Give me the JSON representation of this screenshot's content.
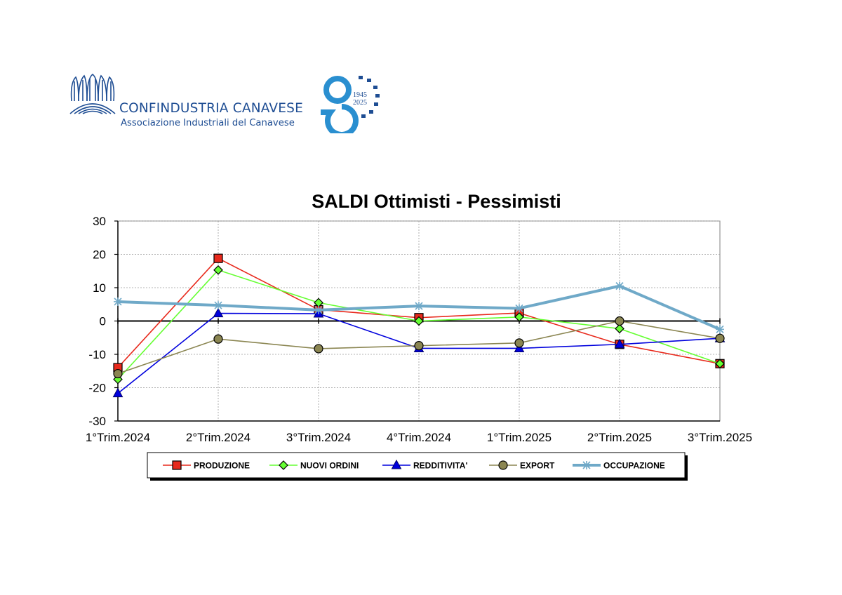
{
  "header": {
    "org_name": "CONFINDUSTRIA CANAVESE",
    "org_subtitle": "Associazione Industriali del Canavese",
    "anniversary_years": "1945 2025",
    "anniversary_number": "80",
    "brand_color": "#1e4d93",
    "anniversary_color": "#2a8fd0"
  },
  "chart_data": {
    "type": "line",
    "title": "SALDI Ottimisti - Pessimisti",
    "xlabel": "",
    "ylabel": "",
    "categories": [
      "1°Trim.2024",
      "2°Trim.2024",
      "3°Trim.2024",
      "4°Trim.2024",
      "1°Trim.2025",
      "2°Trim.2025",
      "3°Trim.2025"
    ],
    "ylim": [
      -30,
      30
    ],
    "yticks": [
      30,
      20,
      10,
      0,
      -10,
      -20,
      -30
    ],
    "grid": true,
    "legend_position": "bottom",
    "series": [
      {
        "name": "PRODUZIONE",
        "values": [
          -14,
          18.8,
          3.4,
          1,
          2.4,
          -7,
          -12.8
        ],
        "color": "#e8291c",
        "marker": "square",
        "marker_fill": "#e8291c"
      },
      {
        "name": "NUOVI ORDINI",
        "values": [
          -17.5,
          15.3,
          5.5,
          0,
          1.2,
          -2.3,
          -12.8
        ],
        "color": "#66ff33",
        "marker": "diamond",
        "marker_fill": "#66ff33"
      },
      {
        "name": "REDDITIVITA'",
        "values": [
          -21.7,
          2.3,
          2.2,
          -8.2,
          -8.2,
          -7,
          -5.2
        ],
        "color": "#0000dd",
        "marker": "triangle",
        "marker_fill": "#0000dd"
      },
      {
        "name": "EXPORT",
        "values": [
          -15.8,
          -5.4,
          -8.3,
          -7.4,
          -6.6,
          0,
          -5.2
        ],
        "color": "#8b8652",
        "marker": "circle",
        "marker_fill": "#8b8652"
      },
      {
        "name": "OCCUPAZIONE",
        "values": [
          5.8,
          4.7,
          3.3,
          4.5,
          3.8,
          10.5,
          -2.5
        ],
        "color": "#6fa9c8",
        "marker": "asterisk",
        "marker_fill": "#6fa9c8"
      }
    ]
  }
}
